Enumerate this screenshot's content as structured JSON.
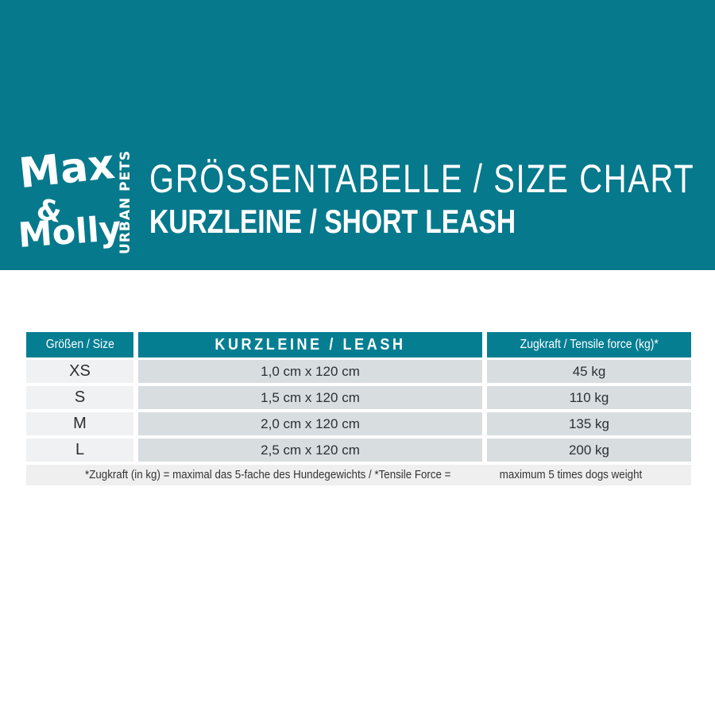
{
  "colors": {
    "teal": "#06798C",
    "header_teal": "#067E92",
    "cell_light": "#EFF1F2",
    "cell_gray": "#D8DDE0",
    "footnote_bg": "#EFEFEF",
    "text_dark": "#2A3134",
    "white": "#FFFFFF"
  },
  "brand": {
    "name_line1": "Max",
    "ampersand": "&",
    "name_line2": "Molly",
    "tagline": "URBAN PETS"
  },
  "banner": {
    "title": "GRÖSSENTABELLE / SIZE CHART",
    "subtitle": "KURZLEINE / SHORT LEASH"
  },
  "chart_data": {
    "type": "table",
    "title": "GRÖSSENTABELLE / SIZE CHART",
    "subtitle": "KURZLEINE / SHORT LEASH",
    "columns": [
      "Größen / Size",
      "KURZLEINE / LEASH",
      "Zugkraft / Tensile force (kg)*"
    ],
    "rows": [
      {
        "size": "XS",
        "leash": "1,0 cm x 120 cm",
        "force": "45 kg"
      },
      {
        "size": "S",
        "leash": "1,5 cm x 120 cm",
        "force": "110 kg"
      },
      {
        "size": "M",
        "leash": "2,0 cm x 120 cm",
        "force": "135 kg"
      },
      {
        "size": "L",
        "leash": "2,5 cm x 120 cm",
        "force": "200 kg"
      }
    ],
    "footnote_de": "*Zugkraft (in kg) = maximal das 5-fache des Hundegewichts / *Tensile Force =",
    "footnote_en": "maximum 5 times dogs weight"
  }
}
